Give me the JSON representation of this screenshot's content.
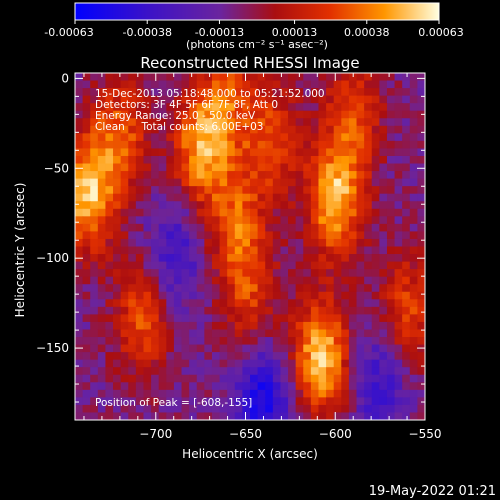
{
  "chart_data": {
    "type": "heatmap",
    "title": "Reconstructed RHESSI Image",
    "xlabel": "Heliocentric X (arcsec)",
    "ylabel": "Heliocentric Y (arcsec)",
    "xlim": [
      -745,
      -550
    ],
    "ylim": [
      -190,
      3
    ],
    "x_ticks": [
      -700,
      -650,
      -600,
      -550
    ],
    "y_ticks": [
      0,
      -50,
      -100,
      -150
    ],
    "colorbar": {
      "label": "(photons cm⁻² s⁻¹ asec⁻²)",
      "range": [
        -0.00063,
        0.00063
      ],
      "tick_labels": [
        "-0.00063",
        "-0.00038",
        "-0.00013",
        "0.00013",
        "0.00038",
        "0.00063"
      ],
      "tick_values": [
        -0.00063,
        -0.00038,
        -0.00013,
        0.00013,
        0.00038,
        0.00063
      ]
    },
    "annotations": [
      "15-Dec-2013 05:18:48.000 to 05:21:52.000",
      "Detectors: 3F 4F 5F 6F 7F 8F, Att 0",
      "Energy Range: 25.0 - 50.0 keV",
      "Clean     Total counts: 6.00E+03"
    ],
    "peak_label": "Position of Peak = [-608,-155]",
    "peak": [
      -608,
      -155
    ],
    "bright_regions": [
      {
        "x": -738,
        "y": -65,
        "amplitude": 0.0006
      },
      {
        "x": -720,
        "y": -32,
        "amplitude": 0.0004
      },
      {
        "x": -707,
        "y": -132,
        "amplitude": 0.0004
      },
      {
        "x": -675,
        "y": -40,
        "amplitude": 0.00052
      },
      {
        "x": -660,
        "y": -12,
        "amplitude": 0.00035
      },
      {
        "x": -655,
        "y": -80,
        "amplitude": 0.00038
      },
      {
        "x": -648,
        "y": -120,
        "amplitude": 0.0003
      },
      {
        "x": -635,
        "y": -35,
        "amplitude": 0.00036
      },
      {
        "x": -600,
        "y": -68,
        "amplitude": 0.0006
      },
      {
        "x": -590,
        "y": -20,
        "amplitude": 0.00035
      },
      {
        "x": -608,
        "y": -155,
        "amplitude": 0.00063
      },
      {
        "x": -560,
        "y": -130,
        "amplitude": 0.00036
      }
    ],
    "dim_regions": [
      {
        "x": -640,
        "y": -180,
        "amplitude": -0.00045
      },
      {
        "x": -690,
        "y": -100,
        "amplitude": -0.0003
      },
      {
        "x": -575,
        "y": -170,
        "amplitude": -0.0003
      }
    ],
    "grid": false
  },
  "footer": {
    "date": "19-May-2022 01:21"
  }
}
